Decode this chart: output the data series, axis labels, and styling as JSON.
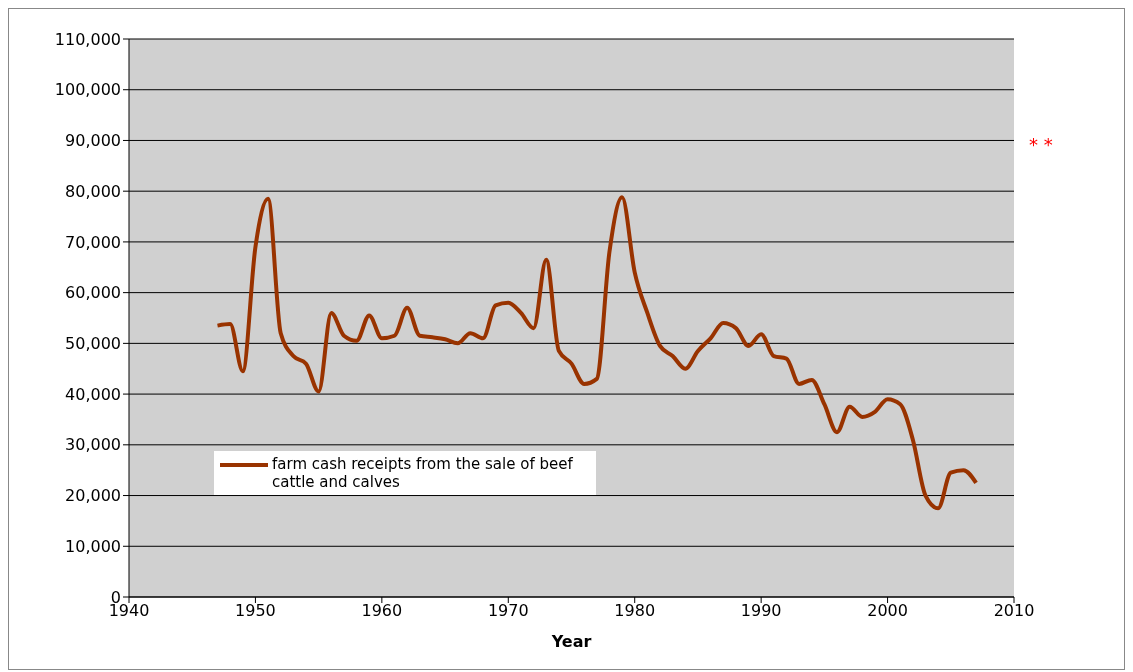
{
  "chart_data": {
    "type": "line",
    "xlabel": "Year",
    "x": [
      1947,
      1948,
      1949,
      1950,
      1951,
      1952,
      1953,
      1954,
      1955,
      1956,
      1957,
      1958,
      1959,
      1960,
      1961,
      1962,
      1963,
      1964,
      1965,
      1966,
      1967,
      1968,
      1969,
      1970,
      1971,
      1972,
      1973,
      1974,
      1975,
      1976,
      1977,
      1978,
      1979,
      1980,
      1981,
      1982,
      1983,
      1984,
      1985,
      1986,
      1987,
      1988,
      1989,
      1990,
      1991,
      1992,
      1993,
      1994,
      1995,
      1996,
      1997,
      1998,
      1999,
      2000,
      2001,
      2002,
      2003,
      2004,
      2005,
      2006,
      2007
    ],
    "series": [
      {
        "name": "farm cash receipts from the sale of beef cattle and calves",
        "color": "#993300",
        "values": [
          53500,
          53800,
          44500,
          69000,
          78500,
          52000,
          47500,
          46000,
          40500,
          56000,
          51500,
          50500,
          55500,
          51000,
          51500,
          57000,
          51500,
          51200,
          50800,
          50000,
          52000,
          51000,
          57500,
          58000,
          56000,
          53000,
          66500,
          48500,
          46000,
          42000,
          43000,
          68000,
          78800,
          64000,
          56000,
          49500,
          47500,
          45000,
          48500,
          51000,
          54000,
          53000,
          49500,
          51800,
          47500,
          47000,
          42000,
          42800,
          38000,
          32500,
          37500,
          35500,
          36500,
          39000,
          38000,
          31000,
          20000,
          17500,
          24500,
          25000,
          22500
        ]
      }
    ],
    "xlim": [
      1940,
      2010
    ],
    "xticks": [
      1940,
      1950,
      1960,
      1970,
      1980,
      1990,
      2000,
      2010
    ],
    "ylim": [
      0,
      110000
    ],
    "yticks": [
      0,
      {
        "value": 10000,
        "label": "10,000"
      },
      {
        "value": 20000,
        "label": "20,000"
      },
      {
        "value": 30000,
        "label": "30,000"
      },
      {
        "value": 40000,
        "label": "40,000"
      },
      {
        "value": 50000,
        "label": "50,000"
      },
      {
        "value": 60000,
        "label": "60,000"
      },
      {
        "value": 70000,
        "label": "70,000"
      },
      {
        "value": 80000,
        "label": "80,000"
      },
      {
        "value": 90000,
        "label": "90,000"
      },
      {
        "value": 100000,
        "label": "100,000"
      },
      {
        "value": 110000,
        "label": "110,000"
      }
    ],
    "grid": "y",
    "legend": "bottom left",
    "marker": "none",
    "line_style": "solid",
    "annotations": [
      "* *"
    ]
  }
}
